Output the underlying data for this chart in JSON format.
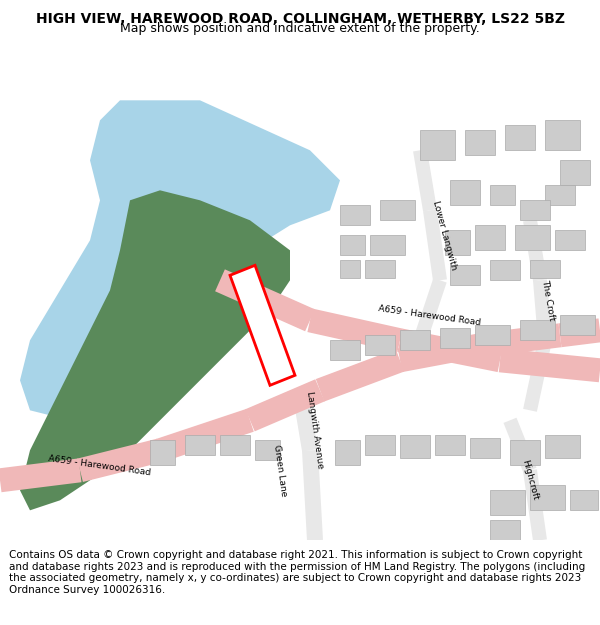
{
  "title_line1": "HIGH VIEW, HAREWOOD ROAD, COLLINGHAM, WETHERBY, LS22 5BZ",
  "title_line2": "Map shows position and indicative extent of the property.",
  "footer": "Contains OS data © Crown copyright and database right 2021. This information is subject to Crown copyright and database rights 2023 and is reproduced with the permission of HM Land Registry. The polygons (including the associated geometry, namely x, y co-ordinates) are subject to Crown copyright and database rights 2023 Ordnance Survey 100026316.",
  "map_bg": "#f5f5f5",
  "water_color": "#a8d4e8",
  "green_color": "#5a8a5a",
  "road_major_color": "#f0b8b8",
  "building_color": "#cccccc",
  "building_edge": "#aaaaaa",
  "plot_color": "#ff0000",
  "title_fontsize": 10,
  "footer_fontsize": 7.5
}
